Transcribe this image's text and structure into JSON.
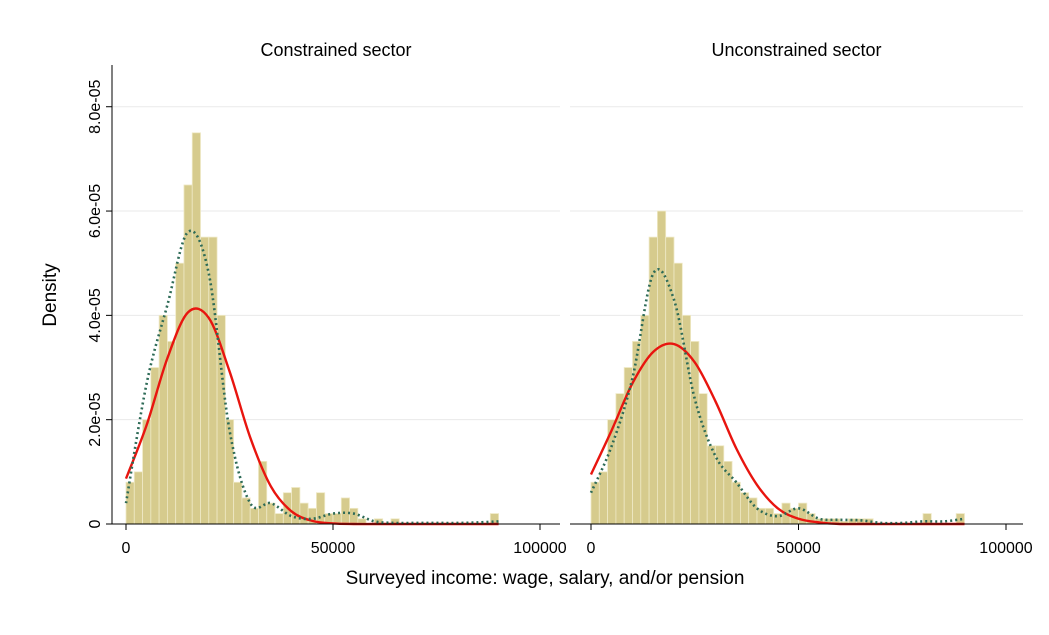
{
  "xlabel": "Surveyed income: wage, salary, and/or pension",
  "ylabel": "Density",
  "chart_data": [
    {
      "type": "histogram",
      "title": "Constrained sector",
      "color": "#d6cb8d",
      "grid": true,
      "xlim": [
        0,
        100000
      ],
      "xticks": [
        0,
        50000,
        100000
      ],
      "ylim": [
        0,
        8.8e-05
      ],
      "yticks": [
        {
          "value": 0,
          "label": "0"
        },
        {
          "value": 2e-05,
          "label": "2.0e-05"
        },
        {
          "value": 4e-05,
          "label": "4.0e-05"
        },
        {
          "value": 6e-05,
          "label": "6.0e-05"
        },
        {
          "value": 8e-05,
          "label": "8.0e-05"
        }
      ],
      "bins": [
        0,
        2000,
        4000,
        6000,
        8000,
        10000,
        12000,
        14000,
        16000,
        18000,
        20000,
        22000,
        24000,
        26000,
        28000,
        30000,
        32000,
        34000,
        36000,
        38000,
        40000,
        42000,
        44000,
        46000,
        48000,
        50000,
        52000,
        54000,
        56000,
        58000,
        60000,
        62000,
        64000,
        66000,
        68000,
        70000,
        72000,
        74000,
        76000,
        78000,
        80000,
        82000,
        84000,
        86000,
        88000,
        90000
      ],
      "values": [
        8e-06,
        1e-05,
        2e-05,
        3e-05,
        4e-05,
        3.5e-05,
        5e-05,
        6.5e-05,
        7.5e-05,
        5.5e-05,
        5.5e-05,
        4e-05,
        2e-05,
        8e-06,
        5e-06,
        3e-06,
        1.2e-05,
        4e-06,
        2e-06,
        6e-06,
        7e-06,
        4e-06,
        3e-06,
        6e-06,
        2e-06,
        2e-06,
        5e-06,
        3e-06,
        1e-06,
        0,
        1e-06,
        0,
        1e-06,
        0,
        0,
        0,
        0,
        0,
        0,
        0,
        0,
        0,
        0,
        0,
        2e-06
      ],
      "curve_x": [
        0,
        5000,
        10000,
        15000,
        20000,
        25000,
        30000,
        35000,
        40000,
        45000,
        50000,
        55000,
        60000,
        65000,
        70000,
        75000,
        80000,
        85000,
        90000
      ],
      "series": [
        {
          "color": "#e8150f",
          "style": "solid",
          "values": [
            8.7e-06,
            1.9e-05,
            3.18e-05,
            4.06e-05,
            3.95e-05,
            2.93e-05,
            1.66e-05,
            7.2e-06,
            2.4e-06,
            6e-07,
            1e-07,
            0,
            0,
            0,
            0,
            0,
            0,
            0,
            0
          ]
        },
        {
          "color": "#2e6b57",
          "style": "dotted",
          "values": [
            4e-06,
            2.7e-05,
            4.2e-05,
            5.6e-05,
            4.8e-05,
            1.8e-05,
            4e-06,
            4e-06,
            1.5e-06,
            1e-06,
            2e-06,
            2e-06,
            5e-07,
            2e-07,
            2e-07,
            2e-07,
            2e-07,
            3e-07,
            5e-07
          ]
        }
      ]
    },
    {
      "type": "histogram",
      "title": "Unconstrained sector",
      "color": "#d6cb8d",
      "grid": true,
      "xlim": [
        0,
        100000
      ],
      "xticks": [
        0,
        50000,
        100000
      ],
      "ylim": [
        0,
        8.8e-05
      ],
      "yticks": [
        {
          "value": 0,
          "label": "0"
        },
        {
          "value": 2e-05,
          "label": "2.0e-05"
        },
        {
          "value": 4e-05,
          "label": "4.0e-05"
        },
        {
          "value": 6e-05,
          "label": "6.0e-05"
        },
        {
          "value": 8e-05,
          "label": "8.0e-05"
        }
      ],
      "bins": [
        0,
        2000,
        4000,
        6000,
        8000,
        10000,
        12000,
        14000,
        16000,
        18000,
        20000,
        22000,
        24000,
        26000,
        28000,
        30000,
        32000,
        34000,
        36000,
        38000,
        40000,
        42000,
        44000,
        46000,
        48000,
        50000,
        52000,
        54000,
        56000,
        58000,
        60000,
        62000,
        64000,
        66000,
        68000,
        70000,
        72000,
        74000,
        76000,
        78000,
        80000,
        82000,
        84000,
        86000,
        88000,
        90000
      ],
      "values": [
        8e-06,
        1e-05,
        2e-05,
        2.5e-05,
        3e-05,
        3.5e-05,
        4e-05,
        5.5e-05,
        6e-05,
        5.5e-05,
        5e-05,
        4e-05,
        3.5e-05,
        2.5e-05,
        1.5e-05,
        1.5e-05,
        1.2e-05,
        8e-06,
        6e-06,
        5e-06,
        3e-06,
        3e-06,
        2e-06,
        4e-06,
        3e-06,
        4e-06,
        2e-06,
        1e-06,
        1e-06,
        1e-06,
        5e-07,
        1e-06,
        1e-06,
        1e-06,
        0,
        0,
        0,
        0,
        0,
        0,
        2e-06,
        0,
        0,
        0,
        2e-06
      ],
      "curve_x": [
        0,
        5000,
        10000,
        15000,
        20000,
        25000,
        30000,
        35000,
        40000,
        45000,
        50000,
        55000,
        60000,
        65000,
        70000,
        75000,
        80000,
        85000,
        90000
      ],
      "series": [
        {
          "color": "#e8150f",
          "style": "solid",
          "values": [
            9.5e-06,
            1.8e-05,
            2.7e-05,
            3.3e-05,
            3.45e-05,
            3.1e-05,
            2.35e-05,
            1.45e-05,
            7.5e-06,
            3e-06,
            1e-06,
            3e-07,
            0,
            0,
            0,
            0,
            0,
            0,
            0
          ]
        },
        {
          "color": "#2e6b57",
          "style": "dotted",
          "values": [
            6e-06,
            1.5e-05,
            2.8e-05,
            4.8e-05,
            4.3e-05,
            2.4e-05,
            1.3e-05,
            8e-06,
            3e-06,
            1.5e-06,
            3e-06,
            1e-06,
            8e-07,
            7e-07,
            2e-07,
            2e-07,
            5e-07,
            5e-07,
            1e-06
          ]
        }
      ]
    }
  ]
}
